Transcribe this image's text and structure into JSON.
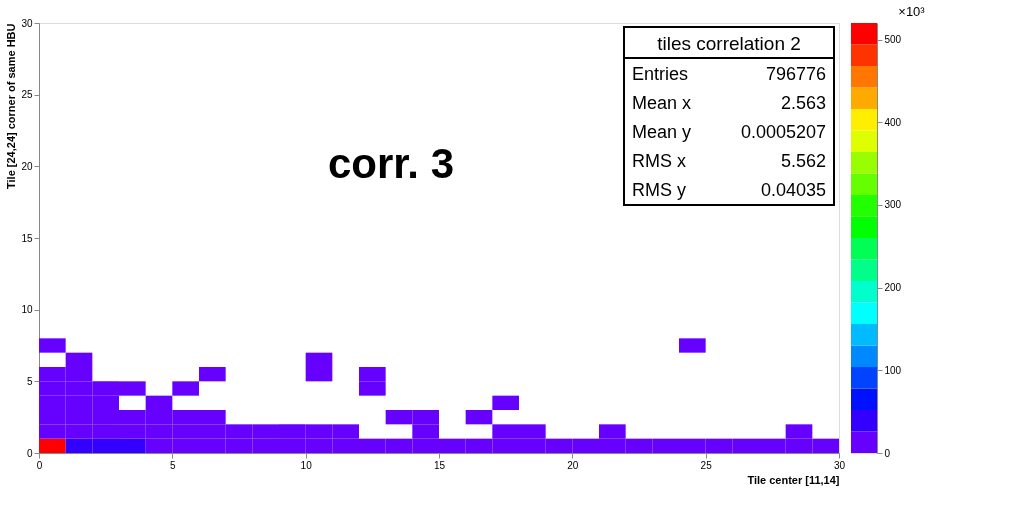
{
  "chart_data": {
    "type": "scatter",
    "xlabel": "Tile center [11,14]",
    "ylabel": "Tile [24,24] corner of same HBU",
    "xlim": [
      0,
      30
    ],
    "ylim": [
      0,
      30
    ],
    "xticks": [
      0,
      5,
      10,
      15,
      20,
      25,
      30
    ],
    "yticks": [
      0,
      5,
      10,
      15,
      20,
      25,
      30
    ],
    "clim": [
      0,
      520
    ],
    "cticks": [
      0,
      100,
      200,
      300,
      400,
      500
    ],
    "grid": false,
    "marker": "square",
    "annotations": [
      "corr. 3",
      "tiles correlation 2",
      "Entries 796776",
      "Mean x 2.563",
      "Mean y 0.0005207",
      "RMS x 5.562",
      "RMS y 0.04035",
      "×10³"
    ],
    "x": [
      0.5,
      1.5,
      2.5,
      3.5,
      4.5,
      5.5,
      6.5,
      7.5,
      8.5,
      9.5,
      10.5,
      11.5,
      12.5,
      13.5,
      14.5,
      15.5,
      16.5,
      17.5,
      18.5,
      19.5,
      20.5,
      21.5,
      22.5,
      23.5,
      24.5,
      25.5,
      26.5,
      27.5,
      28.5,
      29.5,
      0.5,
      1.5,
      2.5,
      3.5,
      4.5,
      5.5,
      6.5,
      7.5,
      8.5,
      9.5,
      10.5,
      11.5,
      14.5,
      17.5,
      18.5,
      21.5,
      28.5,
      0.5,
      1.5,
      2.5,
      3.5,
      4.5,
      5.5,
      6.5,
      13.5,
      14.5,
      16.5,
      0.5,
      1.5,
      2.5,
      4.5,
      17.5,
      0.5,
      1.5,
      2.5,
      3.5,
      5.5,
      12.5,
      0.5,
      1.5,
      6.5,
      10.5,
      12.5,
      1.5,
      10.5,
      0.5,
      24.5
    ],
    "values": [
      0.5,
      0.5,
      0.5,
      0.5,
      0.5,
      0.5,
      0.5,
      0.5,
      0.5,
      0.5,
      0.5,
      0.5,
      0.5,
      0.5,
      0.5,
      0.5,
      0.5,
      0.5,
      0.5,
      0.5,
      0.5,
      0.5,
      0.5,
      0.5,
      0.5,
      0.5,
      0.5,
      0.5,
      0.5,
      0.5,
      1.5,
      1.5,
      1.5,
      1.5,
      1.5,
      1.5,
      1.5,
      1.5,
      1.5,
      1.5,
      1.5,
      1.5,
      1.5,
      1.5,
      1.5,
      1.5,
      1.5,
      2.5,
      2.5,
      2.5,
      2.5,
      2.5,
      2.5,
      2.5,
      2.5,
      2.5,
      2.5,
      3.5,
      3.5,
      3.5,
      3.5,
      3.5,
      4.5,
      4.5,
      4.5,
      4.5,
      4.5,
      4.5,
      5.5,
      5.5,
      5.5,
      5.5,
      5.5,
      6.5,
      6.5,
      7.5,
      7.5
    ],
    "cvalues": [
      515,
      50,
      50,
      50,
      5,
      5,
      5,
      5,
      5,
      5,
      5,
      5,
      5,
      5,
      5,
      5,
      5,
      5,
      5,
      5,
      5,
      5,
      5,
      5,
      5,
      5,
      5,
      5,
      5,
      5,
      0.003,
      0.003,
      0.003,
      0.003,
      0.003,
      0.003,
      0.003,
      0.003,
      0.003,
      0.003,
      0.003,
      0.003,
      0.003,
      0.003,
      0.003,
      0.003,
      0.003,
      0.003,
      0.003,
      0.003,
      0.003,
      0.003,
      0.003,
      0.003,
      0.003,
      0.003,
      0.003,
      0.003,
      0.003,
      0.003,
      0.003,
      0.003,
      0.003,
      0.003,
      0.003,
      0.003,
      0.003,
      0.003,
      0.003,
      0.003,
      0.003,
      0.003,
      0.003,
      0.003,
      0.003,
      0.003,
      0.003
    ]
  }
}
